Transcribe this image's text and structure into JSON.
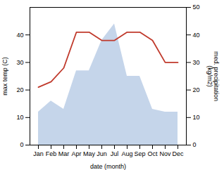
{
  "chart_data": {
    "type": "line",
    "xlabel": "date (month)",
    "ylabel": "max temp (C)",
    "y2label": "med. precipitation\n(kg/m2)",
    "categories": [
      "Jan",
      "Feb",
      "Mar",
      "Apr",
      "May",
      "Jun",
      "Jul",
      "Aug",
      "Sep",
      "Oct",
      "Nov",
      "Dec"
    ],
    "series": [
      {
        "type": "line",
        "color": "#c0392b",
        "values": [
          21,
          23,
          28,
          41,
          41,
          38,
          38,
          41,
          41,
          38,
          30,
          30
        ]
      },
      {
        "type": "area",
        "axis": "y2",
        "color": "#c5d5ea",
        "values": [
          12,
          16,
          13,
          27,
          27,
          38,
          44,
          25,
          25,
          13,
          12,
          12
        ]
      }
    ],
    "ylim": [
      0,
      50
    ],
    "yticks": [
      0,
      10,
      20,
      30,
      40
    ],
    "y2lim": [
      0,
      50
    ],
    "y2ticks": [
      0,
      10,
      20,
      30,
      40,
      50
    ],
    "grid": false
  }
}
